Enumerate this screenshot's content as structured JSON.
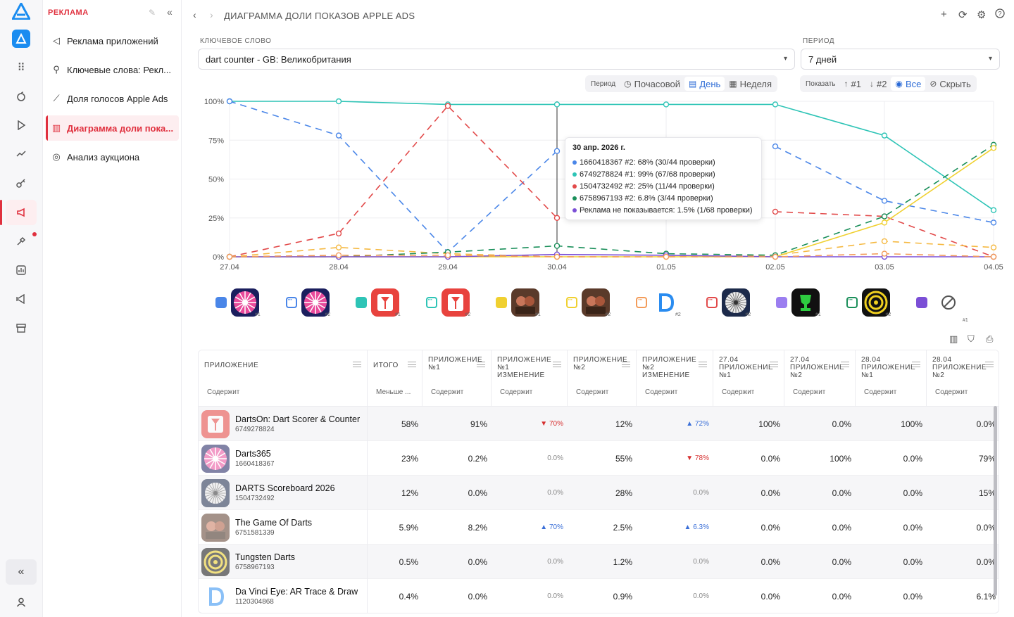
{
  "rail": {
    "icons": [
      "logo-icon",
      "app-icon",
      "grid-icon",
      "apple-icon",
      "play-icon",
      "trend-icon",
      "key-icon",
      "megaphone-icon",
      "tools-icon",
      "chart-icon",
      "vscode-icon",
      "store-icon"
    ],
    "accent": "#e0303e"
  },
  "sidebar": {
    "title": "РЕКЛАМА",
    "items": [
      {
        "label": "Реклама приложений",
        "icon": "megaphone-icon"
      },
      {
        "label": "Ключевые слова: Рекл...",
        "icon": "key-words-icon"
      },
      {
        "label": "Доля голосов Apple Ads",
        "icon": "line-chart-icon"
      },
      {
        "label": "Диаграмма доли пока...",
        "icon": "bar-chart-icon",
        "active": true
      },
      {
        "label": "Анализ аукциона",
        "icon": "auction-icon"
      }
    ]
  },
  "header": {
    "title": "ДИАГРАММА ДОЛИ ПОКАЗОВ APPLE ADS"
  },
  "filters": {
    "keyword_label": "КЛЮЧЕВОЕ СЛОВО",
    "keyword_value": "dart counter - GB: Великобритания",
    "period_label": "ПЕРИОД",
    "period_value": "7 дней"
  },
  "period_toggle": {
    "label": "Период",
    "options": [
      "Почасовой",
      "День",
      "Неделя"
    ],
    "active": "День"
  },
  "show_toggle": {
    "label": "Показать",
    "options": [
      "#1",
      "#2",
      "Все",
      "Скрыть"
    ],
    "active": "Все"
  },
  "chart_data": {
    "type": "line",
    "x": [
      "27.04",
      "28.04",
      "29.04",
      "30.04",
      "01.05",
      "02.05",
      "03.05",
      "04.05"
    ],
    "yticks": [
      "100%",
      "75%",
      "50%",
      "25%",
      "0%"
    ],
    "ylim": [
      0,
      100
    ],
    "series": [
      {
        "color": "#2ec4b6",
        "dash": false,
        "values": [
          100,
          100,
          98,
          98,
          98,
          98,
          78,
          30
        ]
      },
      {
        "color": "#4a86e8",
        "dash": true,
        "values": [
          100,
          78,
          3,
          68,
          null,
          71,
          36,
          22
        ]
      },
      {
        "color": "#e24a4a",
        "dash": true,
        "values": [
          0,
          15,
          97,
          25,
          null,
          29,
          26,
          0
        ]
      },
      {
        "color": "#f5b942",
        "dash": true,
        "values": [
          0,
          6,
          2,
          0,
          0,
          1,
          10,
          6
        ]
      },
      {
        "color": "#1a8f5a",
        "dash": true,
        "values": [
          0,
          0,
          3,
          7,
          2,
          1,
          26,
          72
        ]
      },
      {
        "color": "#f0d030",
        "dash": false,
        "values": [
          0,
          0,
          0,
          0,
          0,
          0,
          22,
          70
        ]
      },
      {
        "color": "#7b4fd6",
        "dash": false,
        "values": [
          0,
          0,
          0,
          1.5,
          1,
          0,
          0,
          0
        ]
      },
      {
        "color": "#f39c5a",
        "dash": true,
        "values": [
          0,
          1,
          1,
          0,
          0,
          0,
          2,
          0
        ]
      }
    ]
  },
  "tooltip": {
    "title": "30 апр. 2026 г.",
    "rows": [
      {
        "color": "#4a86e8",
        "text": "1660418367 #2: 68% (30/44 проверки)"
      },
      {
        "color": "#2ec4b6",
        "text": "6749278824 #1: 99% (67/68 проверки)"
      },
      {
        "color": "#e24a4a",
        "text": "1504732492 #2: 25% (11/44 проверки)"
      },
      {
        "color": "#1a8f5a",
        "text": "6758967193 #2: 6.8% (3/44 проверки)"
      },
      {
        "color": "#7b4fd6",
        "text": "Реклама не показывается: 1.5% (1/68 проверки)"
      }
    ]
  },
  "legend": [
    {
      "color": "#4a86e8",
      "outline": false,
      "app": "darts365",
      "rank": "#1"
    },
    {
      "color": "#4a86e8",
      "outline": true,
      "app": "darts365",
      "rank": "#2"
    },
    {
      "color": "#2ec4b6",
      "outline": false,
      "app": "dartson",
      "rank": "#1"
    },
    {
      "color": "#2ec4b6",
      "outline": true,
      "app": "dartson",
      "rank": "#2"
    },
    {
      "color": "#f0d030",
      "outline": false,
      "app": "gameofdarts",
      "rank": "#1"
    },
    {
      "color": "#f0d030",
      "outline": true,
      "app": "gameofdarts",
      "rank": "#2"
    },
    {
      "color": "#f39c5a",
      "outline": true,
      "app": "davinci",
      "rank": "#2"
    },
    {
      "color": "#e24a4a",
      "outline": true,
      "app": "scoreboard",
      "rank": "#2"
    },
    {
      "color": "#9b7ef0",
      "outline": false,
      "app": "trophy",
      "rank": "#1"
    },
    {
      "color": "#1a8f5a",
      "outline": true,
      "app": "tungsten",
      "rank": "#2"
    },
    {
      "color": "#7b4fd6",
      "outline": false,
      "app": "none",
      "rank": "#1"
    }
  ],
  "table": {
    "headers": [
      {
        "label": "Приложение",
        "filter": "Содержит"
      },
      {
        "label": "Итого",
        "filter": "Меньше ..."
      },
      {
        "label": "Приложение №1",
        "filter": "Содержит"
      },
      {
        "label": "Приложение №1 изменение",
        "filter": "Содержит"
      },
      {
        "label": "Приложение №2",
        "filter": "Содержит"
      },
      {
        "label": "Приложение №2 изменение",
        "filter": "Содержит"
      },
      {
        "label": "27.04 Приложение №1",
        "filter": "Содержит"
      },
      {
        "label": "27.04 Приложение №2",
        "filter": "Содержит"
      },
      {
        "label": "28.04 Приложение №1",
        "filter": "Содержит"
      },
      {
        "label": "28.04 Приложение №2",
        "filter": "Содержит"
      }
    ],
    "rows": [
      {
        "name": "DartsOn: Dart Scorer & Counter",
        "id": "6749278824",
        "app": "dartson",
        "total": "58%",
        "a1": "91%",
        "c1": "▼ 70%",
        "c1dir": "down",
        "a2": "12%",
        "c2": "▲ 72%",
        "c2dir": "up",
        "d1": "100%",
        "d2": "0.0%",
        "d3": "100%",
        "d4": "0.0%"
      },
      {
        "name": "Darts365",
        "id": "1660418367",
        "app": "darts365",
        "total": "23%",
        "a1": "0.2%",
        "c1": "0.0%",
        "c1dir": "",
        "a2": "55%",
        "c2": "▼ 78%",
        "c2dir": "down",
        "d1": "0.0%",
        "d2": "100%",
        "d3": "0.0%",
        "d4": "79%"
      },
      {
        "name": "DARTS Scoreboard 2026",
        "id": "1504732492",
        "app": "scoreboard",
        "total": "12%",
        "a1": "0.0%",
        "c1": "0.0%",
        "c1dir": "",
        "a2": "28%",
        "c2": "0.0%",
        "c2dir": "",
        "d1": "0.0%",
        "d2": "0.0%",
        "d3": "0.0%",
        "d4": "15%"
      },
      {
        "name": "The Game Of Darts",
        "id": "6751581339",
        "app": "gameofdarts",
        "total": "5.9%",
        "a1": "8.2%",
        "c1": "▲ 70%",
        "c1dir": "up",
        "a2": "2.5%",
        "c2": "▲ 6.3%",
        "c2dir": "up",
        "d1": "0.0%",
        "d2": "0.0%",
        "d3": "0.0%",
        "d4": "0.0%"
      },
      {
        "name": "Tungsten Darts",
        "id": "6758967193",
        "app": "tungsten",
        "total": "0.5%",
        "a1": "0.0%",
        "c1": "0.0%",
        "c1dir": "",
        "a2": "1.2%",
        "c2": "0.0%",
        "c2dir": "",
        "d1": "0.0%",
        "d2": "0.0%",
        "d3": "0.0%",
        "d4": "0.0%"
      },
      {
        "name": "Da Vinci Eye: AR Trace & Draw",
        "id": "1120304868",
        "app": "davinci",
        "total": "0.4%",
        "a1": "0.0%",
        "c1": "0.0%",
        "c1dir": "",
        "a2": "0.9%",
        "c2": "0.0%",
        "c2dir": "",
        "d1": "0.0%",
        "d2": "0.0%",
        "d3": "0.0%",
        "d4": "6.1%"
      }
    ]
  }
}
